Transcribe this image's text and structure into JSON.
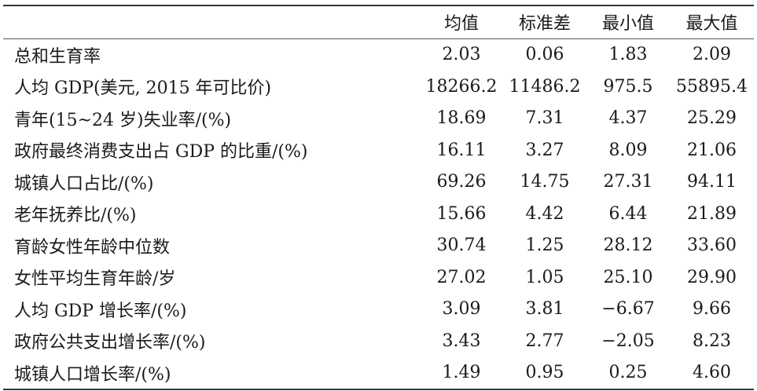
{
  "table": {
    "headers": [
      "",
      "均值",
      "标准差",
      "最小值",
      "最大值"
    ],
    "rows": [
      [
        "总和生育率",
        "2.03",
        "0.06",
        "1.83",
        "2.09"
      ],
      [
        "人均 GDP(美元, 2015 年可比价)",
        "18266.2",
        "11486.2",
        "975.5",
        "55895.4"
      ],
      [
        "青年(15~24 岁)失业率/(%)",
        "18.69",
        "7.31",
        "4.37",
        "25.29"
      ],
      [
        "政府最终消费支出占 GDP 的比重/(%)",
        "16.11",
        "3.27",
        "8.09",
        "21.06"
      ],
      [
        "城镇人口占比/(%)",
        "69.26",
        "14.75",
        "27.31",
        "94.11"
      ],
      [
        "老年抚养比/(%)",
        "15.66",
        "4.42",
        "6.44",
        "21.89"
      ],
      [
        "育龄女性年龄中位数",
        "30.74",
        "1.25",
        "28.12",
        "33.60"
      ],
      [
        "女性平均生育年龄/岁",
        "27.02",
        "1.05",
        "25.10",
        "29.90"
      ],
      [
        "人均 GDP 增长率/(%)",
        "3.09",
        "3.81",
        "−6.67",
        "9.66"
      ],
      [
        "政府公共支出增长率/(%)",
        "3.43",
        "2.77",
        "−2.05",
        "8.23"
      ],
      [
        "城镇人口增长率/(%)",
        "1.49",
        "0.95",
        "0.25",
        "4.60"
      ]
    ]
  }
}
